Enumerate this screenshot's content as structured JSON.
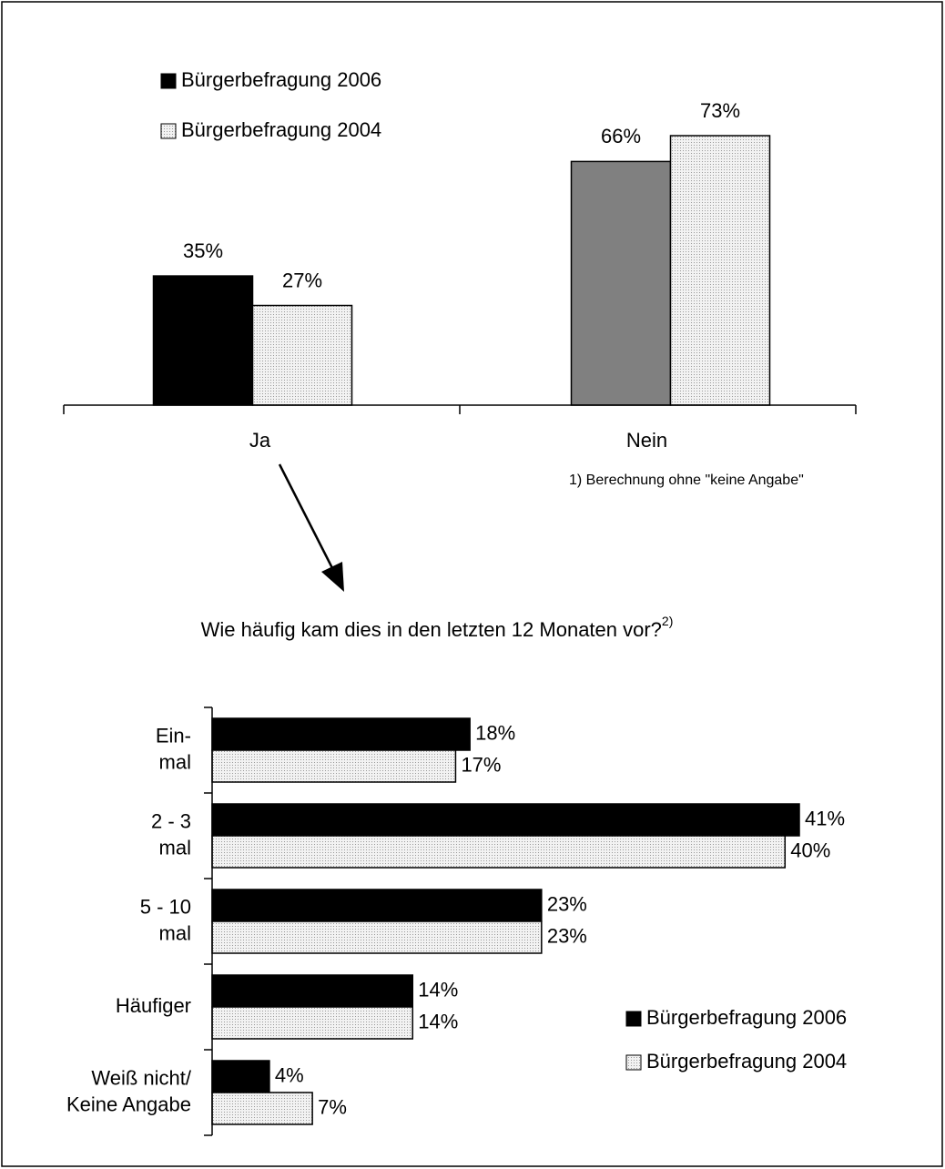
{
  "chart_data": [
    {
      "type": "bar",
      "categories": [
        "Ja",
        "Nein"
      ],
      "legend": "upper left",
      "series": [
        {
          "name": "Bürgerbefragung 2006",
          "color": "#000000",
          "colors": [
            "#000000",
            "#808080"
          ],
          "values": [
            35,
            66
          ],
          "value_labels": [
            "35%",
            "66%"
          ]
        },
        {
          "name": "Bürgerbefragung 2004",
          "color": "#e4e4e4",
          "values": [
            27,
            73
          ],
          "value_labels": [
            "27%",
            "73%"
          ]
        }
      ],
      "annotation": "1) Berechnung ohne \"keine Angabe\""
    },
    {
      "type": "barh",
      "title": "Wie häufig kam dies in den letzten 12 Monaten vor?",
      "title_note": "2)",
      "legend": "lower right",
      "categories": [
        [
          "Ein-",
          "mal"
        ],
        [
          "2 - 3",
          "mal"
        ],
        [
          "5 - 10",
          "mal"
        ],
        [
          "Häufiger"
        ],
        [
          "Weiß nicht/",
          "Keine Angabe"
        ]
      ],
      "series": [
        {
          "name": "Bürgerbefragung 2006",
          "color": "#000000",
          "values": [
            18,
            41,
            23,
            14,
            4
          ],
          "value_labels": [
            "18%",
            "41%",
            "23%",
            "14%",
            "4%"
          ]
        },
        {
          "name": "Bürgerbefragung 2004",
          "color": "#e4e4e4",
          "values": [
            17,
            40,
            23,
            14,
            7
          ],
          "value_labels": [
            "17%",
            "40%",
            "23%",
            "14%",
            "7%"
          ]
        }
      ]
    }
  ]
}
